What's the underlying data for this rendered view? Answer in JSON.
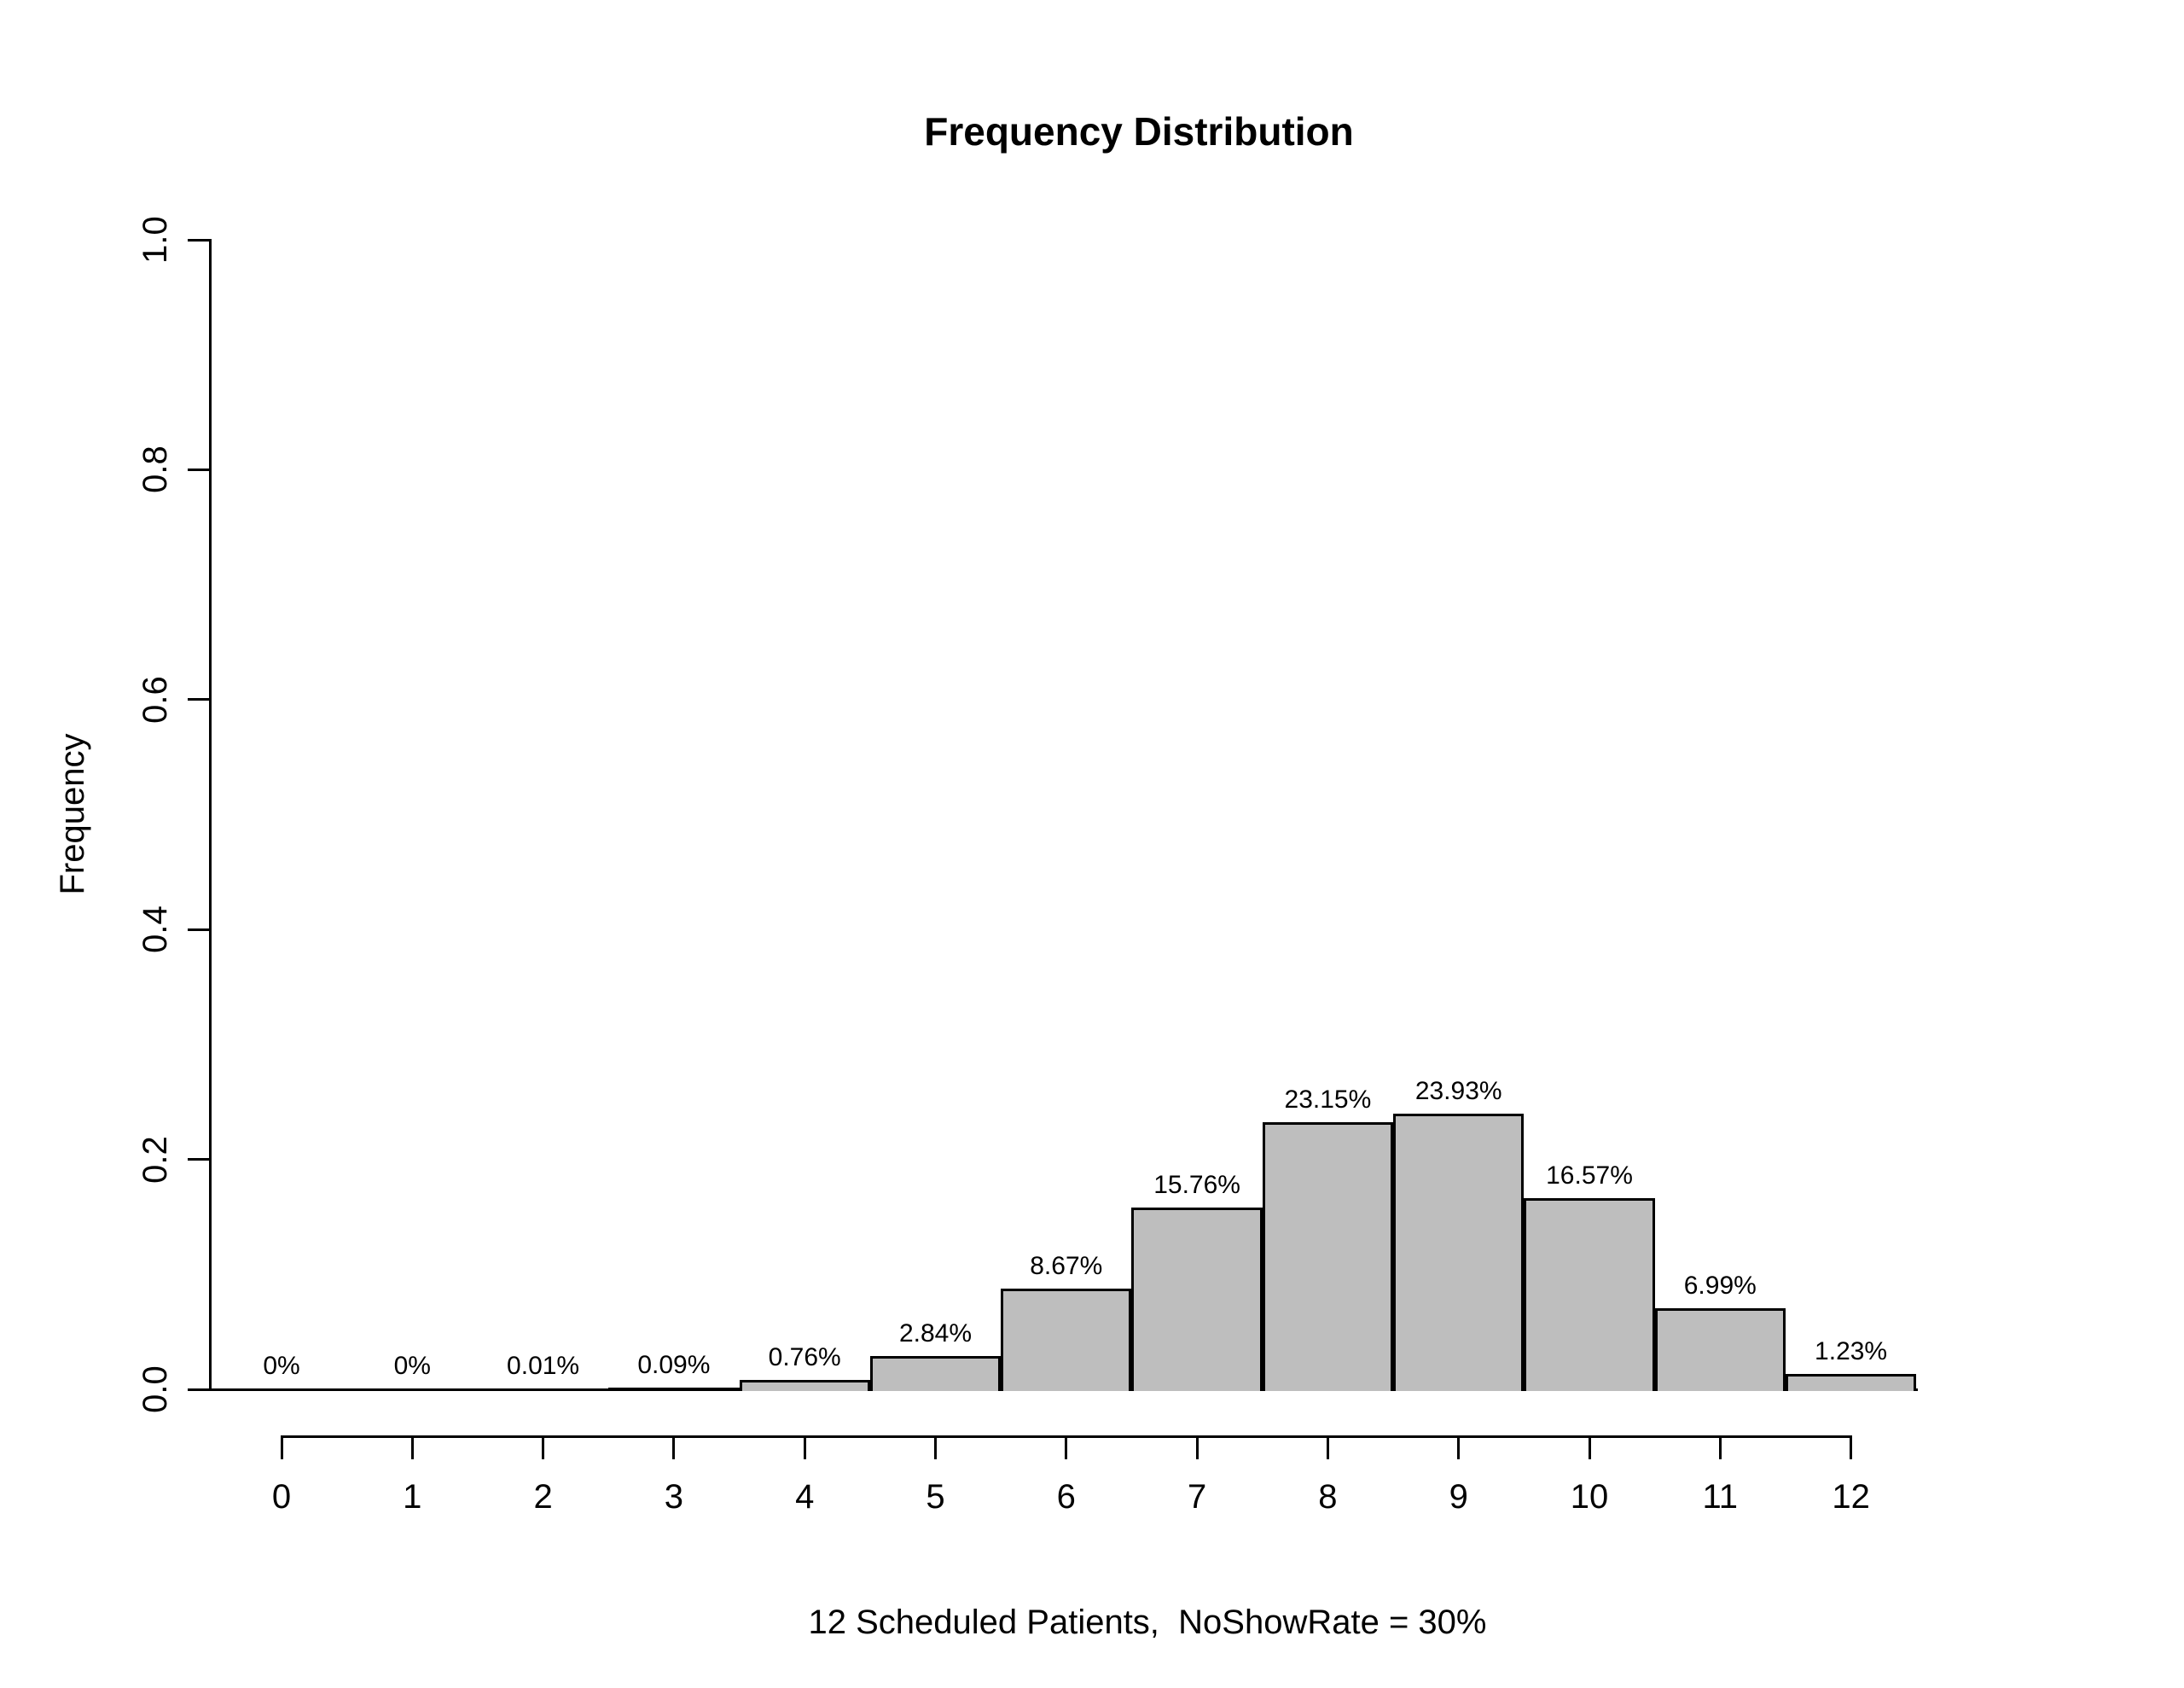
{
  "chart_data": {
    "type": "bar",
    "title": "Frequency Distribution",
    "xlabel": "12 Scheduled Patients,  NoShowRate = 30%",
    "ylabel": "Frequency",
    "categories": [
      "0",
      "1",
      "2",
      "3",
      "4",
      "5",
      "6",
      "7",
      "8",
      "9",
      "10",
      "11",
      "12"
    ],
    "values": [
      0,
      0,
      0.0001,
      0.0009,
      0.0076,
      0.0284,
      0.0867,
      0.1576,
      0.2315,
      0.2393,
      0.1657,
      0.0699,
      0.0123
    ],
    "bar_labels": [
      "0%",
      "0%",
      "0.01%",
      "0.09%",
      "0.76%",
      "2.84%",
      "8.67%",
      "15.76%",
      "23.15%",
      "23.93%",
      "16.57%",
      "6.99%",
      "1.23%"
    ],
    "ylim": [
      0,
      1
    ],
    "yticks": [
      "0.0",
      "0.2",
      "0.4",
      "0.6",
      "0.8",
      "1.0"
    ],
    "grid": false,
    "legend": null,
    "bar_fill": "#BEBEBE",
    "bar_border": "#000000",
    "axis_color": "#000000",
    "background": "#FFFFFF"
  }
}
